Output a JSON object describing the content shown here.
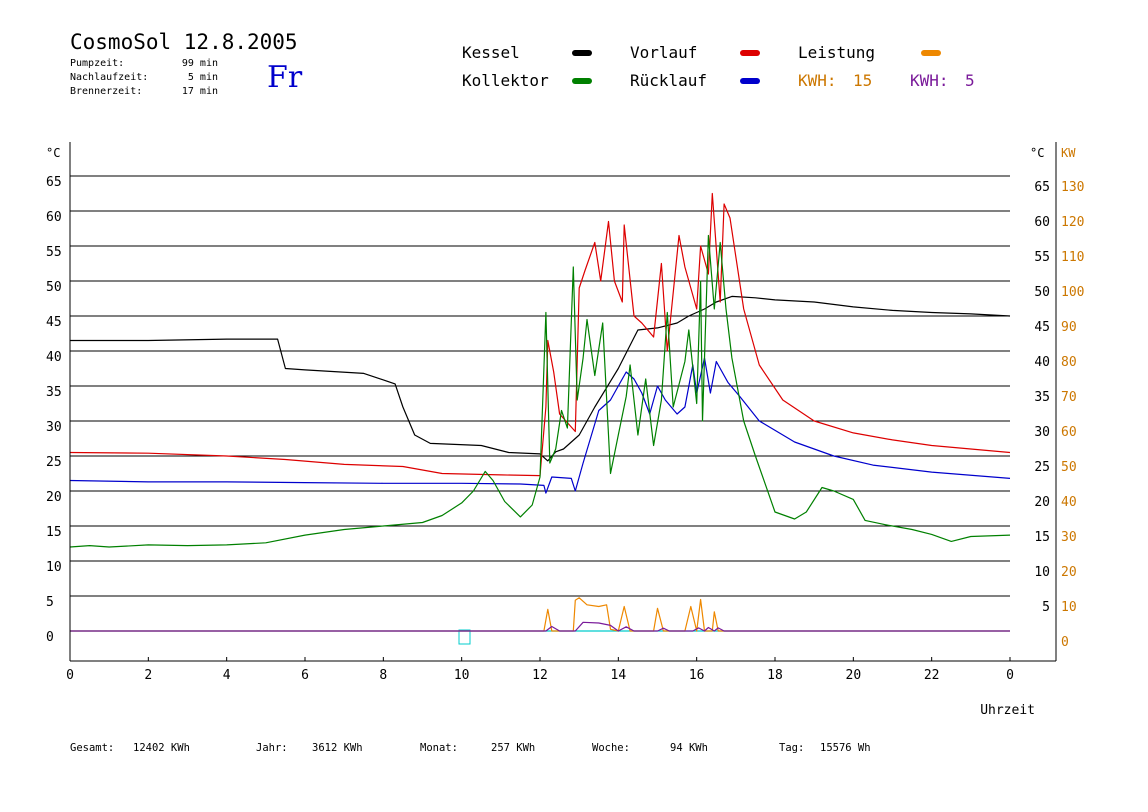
{
  "header": {
    "title": "CosmoSol 12.8.2005",
    "day": "Fr",
    "stats": [
      {
        "label": "Pumpzeit:",
        "value": "99 min"
      },
      {
        "label": "Nachlaufzeit:",
        "value": "5 min"
      },
      {
        "label": "Brennerzeit:",
        "value": "17 min"
      }
    ]
  },
  "legend": {
    "kessel": {
      "label": "Kessel",
      "color": "#000000"
    },
    "kollektor": {
      "label": "Kollektor",
      "color": "#008000"
    },
    "vorlauf": {
      "label": "Vorlauf",
      "color": "#dd0000"
    },
    "ruecklauf": {
      "label": "Rücklauf",
      "color": "#0000cc"
    },
    "leistung": {
      "label": "Leistung",
      "color": "#ee8800"
    },
    "kwh1": {
      "label": "KWH:",
      "value": "15",
      "color": "#cc7700"
    },
    "kwh2": {
      "label": "KWH:",
      "value": "5",
      "color": "#7a1a9a"
    }
  },
  "footer": [
    {
      "label": "Gesamt:",
      "value": "12402 KWh"
    },
    {
      "label": "Jahr:",
      "value": "3612 KWh"
    },
    {
      "label": "Monat:",
      "value": "257 KWh"
    },
    {
      "label": "Woche:",
      "value": "94 KWh"
    },
    {
      "label": "Tag:",
      "value": "15576 Wh"
    }
  ],
  "chart_data": {
    "type": "line",
    "xlabel": "Uhrzeit",
    "ylabel_left": "°C",
    "ylabel_right_units": [
      "°C",
      "KW"
    ],
    "xlim": [
      0,
      24
    ],
    "ylim": [
      0,
      70
    ],
    "x_ticks": [
      "0",
      "2",
      "4",
      "6",
      "8",
      "10",
      "12",
      "14",
      "16",
      "18",
      "20",
      "22",
      "0"
    ],
    "y_ticks_left": [
      "0",
      "5",
      "10",
      "15",
      "20",
      "25",
      "30",
      "35",
      "40",
      "45",
      "50",
      "55",
      "60",
      "65"
    ],
    "y_ticks_right_c": [
      "5",
      "10",
      "15",
      "20",
      "25",
      "30",
      "35",
      "40",
      "45",
      "50",
      "55",
      "60",
      "65"
    ],
    "y_ticks_right_kw": [
      "0",
      "10",
      "20",
      "30",
      "40",
      "50",
      "60",
      "70",
      "80",
      "90",
      "100",
      "110",
      "120",
      "130"
    ],
    "grid": "horizontal",
    "baseline_color": "#00cccc",
    "series": [
      {
        "name": "Kessel",
        "color": "#000000",
        "points": [
          [
            0,
            41.5
          ],
          [
            2,
            41.5
          ],
          [
            4,
            41.7
          ],
          [
            5.3,
            41.7
          ],
          [
            5.5,
            37.5
          ],
          [
            6,
            37.3
          ],
          [
            7.5,
            36.8
          ],
          [
            8.3,
            35.3
          ],
          [
            8.5,
            32
          ],
          [
            8.8,
            28
          ],
          [
            9.2,
            26.8
          ],
          [
            10.5,
            26.5
          ],
          [
            11.2,
            25.5
          ],
          [
            12,
            25.3
          ],
          [
            12.2,
            24.3
          ],
          [
            12.4,
            25.6
          ],
          [
            12.6,
            26
          ],
          [
            13.0,
            28
          ],
          [
            13.4,
            32
          ],
          [
            14,
            37.5
          ],
          [
            14.5,
            43
          ],
          [
            15,
            43.3
          ],
          [
            15.5,
            44
          ],
          [
            15.8,
            45
          ],
          [
            16.2,
            46
          ],
          [
            16.5,
            47
          ],
          [
            16.9,
            47.8
          ],
          [
            17.5,
            47.6
          ],
          [
            18,
            47.3
          ],
          [
            19,
            47
          ],
          [
            20,
            46.3
          ],
          [
            21,
            45.8
          ],
          [
            22,
            45.5
          ],
          [
            23,
            45.3
          ],
          [
            24,
            45
          ]
        ]
      },
      {
        "name": "Vorlauf",
        "color": "#dd0000",
        "points": [
          [
            0,
            25.5
          ],
          [
            2,
            25.4
          ],
          [
            4,
            25
          ],
          [
            5.5,
            24.5
          ],
          [
            7,
            23.8
          ],
          [
            8.5,
            23.5
          ],
          [
            9.5,
            22.5
          ],
          [
            11,
            22.3
          ],
          [
            12,
            22.2
          ],
          [
            12.15,
            32
          ],
          [
            12.2,
            41.5
          ],
          [
            12.35,
            37
          ],
          [
            12.5,
            31
          ],
          [
            12.9,
            28.5
          ],
          [
            13.0,
            49
          ],
          [
            13.15,
            51.5
          ],
          [
            13.4,
            55.5
          ],
          [
            13.55,
            50
          ],
          [
            13.75,
            58.5
          ],
          [
            13.9,
            50
          ],
          [
            14.1,
            47
          ],
          [
            14.15,
            58
          ],
          [
            14.4,
            45
          ],
          [
            14.6,
            44
          ],
          [
            14.9,
            42
          ],
          [
            15.1,
            52.5
          ],
          [
            15.25,
            40
          ],
          [
            15.55,
            56.5
          ],
          [
            15.7,
            52
          ],
          [
            16.0,
            46
          ],
          [
            16.1,
            55
          ],
          [
            16.3,
            51
          ],
          [
            16.4,
            62.5
          ],
          [
            16.6,
            47
          ],
          [
            16.7,
            61
          ],
          [
            16.85,
            59
          ],
          [
            17.2,
            46
          ],
          [
            17.6,
            38
          ],
          [
            18.2,
            33
          ],
          [
            19,
            30
          ],
          [
            20,
            28.3
          ],
          [
            21,
            27.3
          ],
          [
            22,
            26.5
          ],
          [
            23,
            26
          ],
          [
            24,
            25.5
          ]
        ]
      },
      {
        "name": "Rücklauf",
        "color": "#0000cc",
        "points": [
          [
            0,
            21.5
          ],
          [
            2,
            21.3
          ],
          [
            4,
            21.3
          ],
          [
            6,
            21.2
          ],
          [
            8,
            21.1
          ],
          [
            10,
            21.1
          ],
          [
            11.5,
            21
          ],
          [
            12.1,
            20.8
          ],
          [
            12.15,
            19.7
          ],
          [
            12.3,
            22
          ],
          [
            12.8,
            21.8
          ],
          [
            12.9,
            20
          ],
          [
            13.1,
            24
          ],
          [
            13.5,
            31.5
          ],
          [
            13.8,
            33
          ],
          [
            14.0,
            35
          ],
          [
            14.2,
            37
          ],
          [
            14.4,
            36
          ],
          [
            14.6,
            34
          ],
          [
            14.8,
            31
          ],
          [
            15.0,
            35
          ],
          [
            15.2,
            33
          ],
          [
            15.5,
            31
          ],
          [
            15.7,
            32
          ],
          [
            15.9,
            38
          ],
          [
            16.0,
            34
          ],
          [
            16.2,
            39
          ],
          [
            16.35,
            34
          ],
          [
            16.5,
            38.5
          ],
          [
            16.8,
            35.5
          ],
          [
            17.1,
            33.5
          ],
          [
            17.6,
            30
          ],
          [
            18.5,
            27
          ],
          [
            19.5,
            25
          ],
          [
            20.5,
            23.7
          ],
          [
            22,
            22.7
          ],
          [
            24,
            21.8
          ]
        ]
      },
      {
        "name": "Kollektor",
        "color": "#008000",
        "points": [
          [
            0,
            12
          ],
          [
            0.5,
            12.2
          ],
          [
            1,
            12
          ],
          [
            2,
            12.3
          ],
          [
            3,
            12.2
          ],
          [
            4,
            12.3
          ],
          [
            5,
            12.6
          ],
          [
            6,
            13.7
          ],
          [
            7,
            14.5
          ],
          [
            8,
            15
          ],
          [
            9,
            15.5
          ],
          [
            9.5,
            16.5
          ],
          [
            10,
            18.3
          ],
          [
            10.3,
            20
          ],
          [
            10.6,
            22.8
          ],
          [
            10.8,
            21.5
          ],
          [
            11.1,
            18.5
          ],
          [
            11.5,
            16.3
          ],
          [
            11.8,
            18
          ],
          [
            12.0,
            22
          ],
          [
            12.15,
            45.5
          ],
          [
            12.25,
            24
          ],
          [
            12.4,
            26
          ],
          [
            12.55,
            31.5
          ],
          [
            12.7,
            29
          ],
          [
            12.85,
            52
          ],
          [
            12.95,
            33
          ],
          [
            13.1,
            39
          ],
          [
            13.2,
            44.5
          ],
          [
            13.4,
            36.5
          ],
          [
            13.6,
            44
          ],
          [
            13.8,
            22.5
          ],
          [
            14.0,
            28
          ],
          [
            14.2,
            33.5
          ],
          [
            14.3,
            38
          ],
          [
            14.5,
            28
          ],
          [
            14.7,
            36
          ],
          [
            14.9,
            26.5
          ],
          [
            15.1,
            33
          ],
          [
            15.25,
            45.5
          ],
          [
            15.4,
            32
          ],
          [
            15.7,
            38.5
          ],
          [
            15.8,
            43
          ],
          [
            16.0,
            32.5
          ],
          [
            16.1,
            50
          ],
          [
            16.15,
            30
          ],
          [
            16.3,
            56.5
          ],
          [
            16.45,
            46
          ],
          [
            16.6,
            55.5
          ],
          [
            16.75,
            46
          ],
          [
            16.9,
            39
          ],
          [
            17.2,
            30
          ],
          [
            17.5,
            25
          ],
          [
            18,
            17
          ],
          [
            18.5,
            16
          ],
          [
            18.8,
            17
          ],
          [
            19.2,
            20.5
          ],
          [
            19.5,
            20
          ],
          [
            20,
            18.8
          ],
          [
            20.3,
            15.8
          ],
          [
            20.8,
            15.2
          ],
          [
            21.5,
            14.5
          ],
          [
            22,
            13.8
          ],
          [
            22.5,
            12.8
          ],
          [
            23,
            13.5
          ],
          [
            24,
            13.7
          ]
        ]
      },
      {
        "name": "Leistung",
        "color": "#ee8800",
        "axis": "kw",
        "points": [
          [
            0,
            0
          ],
          [
            12.1,
            0
          ],
          [
            12.2,
            6.2
          ],
          [
            12.3,
            0
          ],
          [
            12.85,
            0
          ],
          [
            12.9,
            8.8
          ],
          [
            13.0,
            9.5
          ],
          [
            13.2,
            7.5
          ],
          [
            13.5,
            7
          ],
          [
            13.7,
            7.5
          ],
          [
            13.8,
            0.5
          ],
          [
            14.0,
            0
          ],
          [
            14.15,
            7
          ],
          [
            14.3,
            0
          ],
          [
            14.9,
            0
          ],
          [
            15.0,
            6.5
          ],
          [
            15.15,
            0
          ],
          [
            15.7,
            0
          ],
          [
            15.85,
            7
          ],
          [
            16.0,
            0
          ],
          [
            16.1,
            9
          ],
          [
            16.2,
            0
          ],
          [
            16.4,
            0
          ],
          [
            16.45,
            5.5
          ],
          [
            16.55,
            0
          ],
          [
            24,
            0
          ]
        ]
      },
      {
        "name": "KWH 5",
        "color": "#7a1a9a",
        "axis": "kw",
        "points": [
          [
            0,
            0
          ],
          [
            12.15,
            0
          ],
          [
            12.3,
            1.3
          ],
          [
            12.5,
            0
          ],
          [
            12.9,
            0
          ],
          [
            13.1,
            2.5
          ],
          [
            13.5,
            2.3
          ],
          [
            13.8,
            1.6
          ],
          [
            14.0,
            0
          ],
          [
            14.2,
            1.2
          ],
          [
            14.4,
            0
          ],
          [
            15.0,
            0
          ],
          [
            15.15,
            0.8
          ],
          [
            15.3,
            0
          ],
          [
            15.9,
            0
          ],
          [
            16.05,
            0.9
          ],
          [
            16.2,
            0
          ],
          [
            16.3,
            1.0
          ],
          [
            16.45,
            0
          ],
          [
            16.55,
            0.9
          ],
          [
            16.7,
            0
          ],
          [
            24,
            0
          ]
        ]
      }
    ]
  }
}
